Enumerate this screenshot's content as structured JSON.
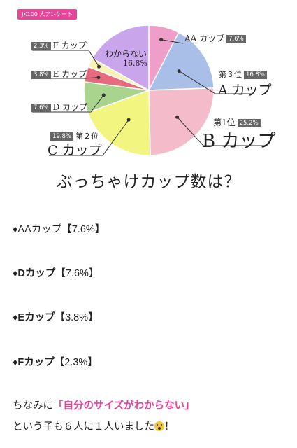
{
  "survey_badge": "JK100 人アンケート",
  "chart_data": {
    "type": "pie",
    "title": "ぶっちゃけカップ数は？",
    "start_angle_deg": 0,
    "direction": "clockwise",
    "slices": [
      {
        "key": "aa",
        "label": "AA カップ",
        "value": 7.6,
        "value_text": "7.6%",
        "color": "#ee9ec9"
      },
      {
        "key": "a",
        "label": "A カップ",
        "value": 16.8,
        "value_text": "16.8%",
        "rank": "第３位",
        "color": "#a9bfe8"
      },
      {
        "key": "b",
        "label": "B カップ",
        "value": 25.2,
        "value_text": "25.2%",
        "rank": "第1位",
        "color": "#f4bccb"
      },
      {
        "key": "c",
        "label": "C カップ",
        "value": 19.8,
        "value_text": "19.8%",
        "rank": "第２位",
        "color": "#f2f57f"
      },
      {
        "key": "d",
        "label": "D カップ",
        "value": 7.6,
        "value_text": "7.6%",
        "color": "#a8d48e"
      },
      {
        "key": "e",
        "label": "E カップ",
        "value": 3.8,
        "value_text": "3.8%",
        "color": "#e66b7e"
      },
      {
        "key": "f",
        "label": "F カップ",
        "value": 2.3,
        "value_text": "2.3%",
        "color": "#f8f3b4"
      },
      {
        "key": "unknown",
        "label": "わからない",
        "value": 16.8,
        "value_text": "16.8%",
        "color": "#c9a6ec"
      }
    ]
  },
  "list": [
    {
      "bullet": "♦",
      "name": "AAカップ",
      "value": "【7.6%】"
    },
    {
      "bullet": "♦",
      "name": "Dカップ",
      "value": "【7.6%】"
    },
    {
      "bullet": "♦",
      "name": "Eカップ",
      "value": "【3.8%】"
    },
    {
      "bullet": "♦",
      "name": "Fカップ",
      "value": "【2.3%】"
    }
  ],
  "note": {
    "line1_prefix": "ちなみに",
    "line1_highlight": "「自分のサイズがわからない」",
    "line2": "という子も６人に１人いました",
    "line2_suffix": "！",
    "emoji_icon": "flushed-face-icon"
  }
}
